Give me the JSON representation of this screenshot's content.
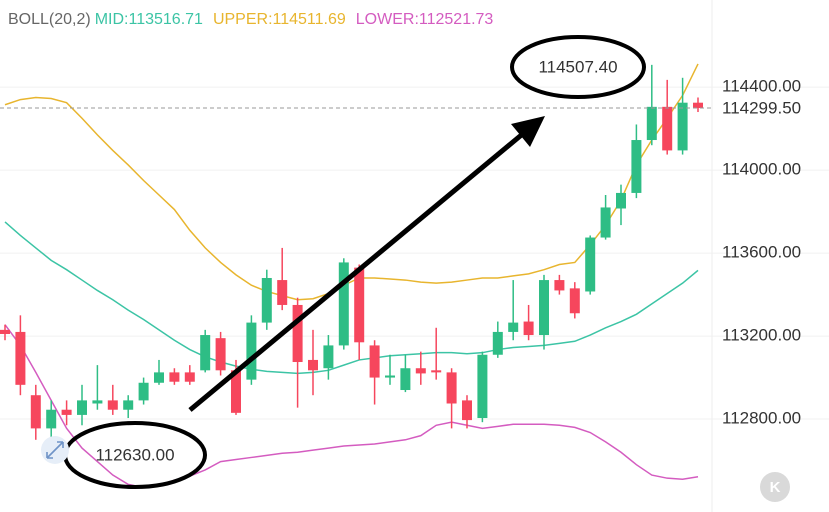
{
  "chart_data": {
    "type": "candlestick",
    "indicator": "BOLL(20,2)",
    "up_color": "#2ebd85",
    "down_color": "#f6465d",
    "ylim": [
      112352,
      114820
    ],
    "yticks": [
      {
        "value": 114400,
        "label": "114400.00"
      },
      {
        "value": 114000,
        "label": "114000.00"
      },
      {
        "value": 113600,
        "label": "113600.00"
      },
      {
        "value": 113200,
        "label": "113200.00"
      },
      {
        "value": 112800,
        "label": "112800.00"
      }
    ],
    "grid": true,
    "last_price": 114299.5,
    "last_price_label": "114299.50",
    "last_price_color": "#f6465d",
    "candles": {
      "open": [
        113230,
        113220,
        112915,
        112755,
        112845,
        112820,
        112875,
        112890,
        112845,
        112890,
        112975,
        113025,
        113025,
        113035,
        113190,
        113035,
        112990,
        113265,
        113470,
        113350,
        113085,
        113045,
        113155,
        113530,
        113155,
        113000,
        112940,
        113045,
        113035,
        113025,
        112890,
        112805,
        113110,
        113220,
        113270,
        113205,
        113470,
        113430,
        113415,
        113675,
        113815,
        113890,
        114145,
        114305,
        114095,
        114325
      ],
      "high": [
        113255,
        113300,
        112965,
        112890,
        112890,
        112965,
        113060,
        112965,
        112915,
        113000,
        113085,
        113045,
        113060,
        113230,
        113220,
        113085,
        113300,
        113520,
        113625,
        113385,
        113230,
        113205,
        113575,
        113545,
        113180,
        113110,
        113110,
        113125,
        113240,
        113045,
        112915,
        113125,
        113270,
        113470,
        113350,
        113495,
        113495,
        113460,
        113685,
        113880,
        113930,
        114220,
        114507.4,
        114435,
        114445,
        114350
      ],
      "low": [
        113180,
        112915,
        112700,
        112630,
        112770,
        112770,
        112845,
        112820,
        112805,
        112870,
        112965,
        112965,
        112965,
        113025,
        113010,
        112820,
        112965,
        113230,
        113325,
        112855,
        112915,
        112990,
        113135,
        113085,
        112870,
        112965,
        112930,
        112965,
        112990,
        112755,
        112755,
        112785,
        113095,
        113180,
        113180,
        113135,
        113400,
        113285,
        113400,
        113665,
        113735,
        113865,
        114120,
        114075,
        114075,
        114280
      ],
      "close": [
        113210,
        112965,
        112755,
        112845,
        112820,
        112890,
        112890,
        112845,
        112890,
        112975,
        113025,
        112980,
        112980,
        113205,
        113035,
        112830,
        113265,
        113480,
        113350,
        113075,
        113035,
        113155,
        113555,
        113170,
        113000,
        113010,
        113045,
        113020,
        113025,
        112875,
        112795,
        113110,
        113220,
        113265,
        113205,
        113470,
        113420,
        113310,
        113675,
        113820,
        113890,
        114145,
        114305,
        114095,
        114325,
        114299.5
      ]
    },
    "series": [
      {
        "legend": "MID:113516.71",
        "color": "#3cc4a5",
        "values": [
          113750,
          113685,
          113625,
          113565,
          113520,
          113470,
          113420,
          113375,
          113325,
          113280,
          113230,
          113180,
          113135,
          113100,
          113075,
          113055,
          113040,
          113030,
          113025,
          113020,
          113025,
          113035,
          113060,
          113085,
          113095,
          113105,
          113110,
          113115,
          113120,
          113120,
          113115,
          113120,
          113135,
          113145,
          113150,
          113155,
          113165,
          113175,
          113205,
          113240,
          113270,
          113305,
          113355,
          113405,
          113455,
          113516.71
        ]
      },
      {
        "legend": "UPPER:114511.69",
        "color": "#e8b52e",
        "values": [
          114315,
          114340,
          114350,
          114345,
          114325,
          114250,
          114170,
          114095,
          114025,
          113950,
          113880,
          113810,
          113710,
          113625,
          113555,
          113495,
          113445,
          113415,
          113395,
          113375,
          113380,
          113405,
          113445,
          113480,
          113480,
          113475,
          113470,
          113460,
          113455,
          113460,
          113470,
          113480,
          113480,
          113490,
          113500,
          113520,
          113545,
          113555,
          113640,
          113735,
          113855,
          114025,
          114145,
          114250,
          114360,
          114511.69
        ]
      },
      {
        "legend": "LOWER:112521.73",
        "color": "#d45cc0",
        "values": [
          113255,
          113155,
          113025,
          112890,
          112755,
          112660,
          112595,
          112530,
          112485,
          112470,
          112480,
          112505,
          112525,
          112555,
          112595,
          112605,
          112615,
          112625,
          112635,
          112640,
          112650,
          112660,
          112670,
          112675,
          112680,
          112690,
          112700,
          112720,
          112770,
          112785,
          112770,
          112755,
          112765,
          112775,
          112775,
          112775,
          112770,
          112760,
          112735,
          112690,
          112640,
          112580,
          112530,
          112515,
          112510,
          112521.73
        ]
      }
    ],
    "annotations": [
      {
        "text": "114507.40",
        "value": 114507.4
      },
      {
        "text": "112630.00",
        "value": 112630
      }
    ]
  }
}
